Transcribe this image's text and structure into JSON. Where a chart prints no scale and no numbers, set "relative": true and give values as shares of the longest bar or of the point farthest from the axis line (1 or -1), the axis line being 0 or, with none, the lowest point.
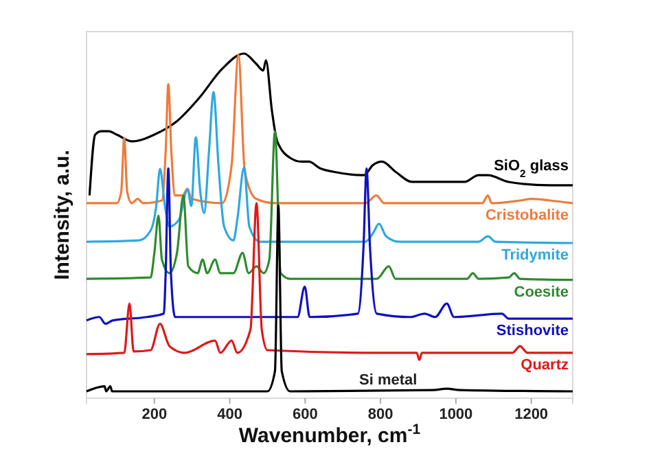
{
  "chart_data": {
    "type": "line",
    "xlabel": "Wavenumber, cm$^{-1}$",
    "ylabel": "Intensity, a.u.",
    "relative": true,
    "xlim": [
      20,
      1310
    ],
    "xticks": [
      200,
      400,
      600,
      800,
      1000,
      1200
    ],
    "grid": false,
    "marker": "none",
    "line_style": "solid",
    "series": [
      {
        "name": "SiO$_{2}$ glass",
        "color": "#000000",
        "x": [
          28,
          43,
          60,
          79,
          100,
          141,
          200,
          260,
          320,
          380,
          438,
          470,
          489,
          496,
          512,
          526,
          562,
          590,
          610,
          640,
          676,
          756,
          780,
          804,
          840,
          884,
          1023,
          1060,
          1085,
          1140,
          1250,
          1310
        ],
        "values": [
          0.58,
          0.76,
          0.77,
          0.77,
          0.76,
          0.74,
          0.76,
          0.8,
          0.87,
          0.955,
          1.0,
          0.97,
          0.95,
          0.98,
          0.83,
          0.74,
          0.69,
          0.68,
          0.68,
          0.66,
          0.65,
          0.64,
          0.67,
          0.68,
          0.65,
          0.62,
          0.62,
          0.64,
          0.64,
          0.62,
          0.61,
          0.61
        ]
      },
      {
        "name": "Cristobalite",
        "color": "#f07a3a",
        "x": [
          20,
          100,
          112,
          120,
          128,
          140,
          156,
          170,
          220,
          230,
          237,
          245,
          255,
          275,
          288,
          298,
          380,
          405,
          423,
          440,
          470,
          520,
          760,
          789,
          810,
          1070,
          1085,
          1095,
          1170,
          1203,
          1250,
          1310
        ],
        "values": [
          0.557,
          0.557,
          0.59,
          0.75,
          0.59,
          0.557,
          0.57,
          0.557,
          0.565,
          0.71,
          0.91,
          0.71,
          0.58,
          0.58,
          0.6,
          0.57,
          0.557,
          0.67,
          0.996,
          0.65,
          0.57,
          0.557,
          0.557,
          0.58,
          0.557,
          0.557,
          0.58,
          0.557,
          0.565,
          0.57,
          0.565,
          0.557
        ]
      },
      {
        "name": "Tridymite",
        "color": "#2ea8df",
        "x": [
          20,
          160,
          190,
          205,
          215,
          228,
          240,
          265,
          288,
          298,
          310,
          322,
          332,
          345,
          357,
          370,
          385,
          410,
          420,
          438,
          452,
          480,
          760,
          780,
          796,
          815,
          850,
          1060,
          1085,
          1105,
          1310
        ],
        "values": [
          0.443,
          0.447,
          0.476,
          0.549,
          0.659,
          0.549,
          0.488,
          0.508,
          0.598,
          0.549,
          0.752,
          0.589,
          0.528,
          0.711,
          0.886,
          0.671,
          0.488,
          0.447,
          0.508,
          0.663,
          0.488,
          0.443,
          0.443,
          0.468,
          0.496,
          0.459,
          0.443,
          0.443,
          0.459,
          0.443,
          0.439
        ]
      },
      {
        "name": "Coesite",
        "color": "#2e8b2e",
        "x": [
          20,
          190,
          200,
          211,
          220,
          240,
          260,
          277,
          290,
          315,
          328,
          340,
          361,
          375,
          410,
          434,
          450,
          471,
          490,
          505,
          520,
          535,
          560,
          790,
          822,
          840,
          1030,
          1045,
          1060,
          1140,
          1155,
          1170,
          1310
        ],
        "values": [
          0.333,
          0.337,
          0.41,
          0.52,
          0.39,
          0.35,
          0.41,
          0.58,
          0.37,
          0.35,
          0.39,
          0.35,
          0.39,
          0.35,
          0.35,
          0.41,
          0.35,
          0.37,
          0.35,
          0.39,
          0.77,
          0.35,
          0.333,
          0.333,
          0.37,
          0.333,
          0.333,
          0.35,
          0.333,
          0.337,
          0.35,
          0.333,
          0.33
        ]
      },
      {
        "name": "Stishovite",
        "color": "#1010c0",
        "x": [
          20,
          54,
          70,
          90,
          180,
          225,
          230,
          237,
          244,
          255,
          580,
          599,
          612,
          740,
          755,
          763,
          772,
          790,
          880,
          917,
          945,
          976,
          995,
          1122,
          1140,
          1310
        ],
        "values": [
          0.21,
          0.22,
          0.2,
          0.21,
          0.22,
          0.23,
          0.35,
          0.66,
          0.35,
          0.22,
          0.22,
          0.31,
          0.22,
          0.23,
          0.43,
          0.66,
          0.43,
          0.23,
          0.22,
          0.23,
          0.22,
          0.26,
          0.22,
          0.23,
          0.215,
          0.215
        ]
      },
      {
        "name": "Quartz",
        "color": "#e01818",
        "x": [
          20,
          120,
          134,
          145,
          190,
          215,
          240,
          280,
          361,
          375,
          405,
          420,
          455,
          471,
          485,
          500,
          800,
          896,
          903,
          910,
          1150,
          1170,
          1190,
          1310
        ],
        "values": [
          0.11,
          0.114,
          0.26,
          0.118,
          0.122,
          0.2,
          0.134,
          0.114,
          0.15,
          0.114,
          0.15,
          0.114,
          0.183,
          0.557,
          0.183,
          0.122,
          0.114,
          0.114,
          0.093,
          0.114,
          0.114,
          0.134,
          0.114,
          0.114
        ]
      },
      {
        "name": "Si metal",
        "color": "#000000",
        "x": [
          20,
          68,
          72,
          83,
          88,
          500,
          520,
          529,
          538,
          560,
          940,
          976,
          1010,
          1310
        ],
        "values": [
          0,
          0.015,
          0,
          0.015,
          0,
          0,
          0.06,
          0.55,
          0.06,
          0,
          0.004,
          0.008,
          0.004,
          0
        ]
      }
    ]
  }
}
